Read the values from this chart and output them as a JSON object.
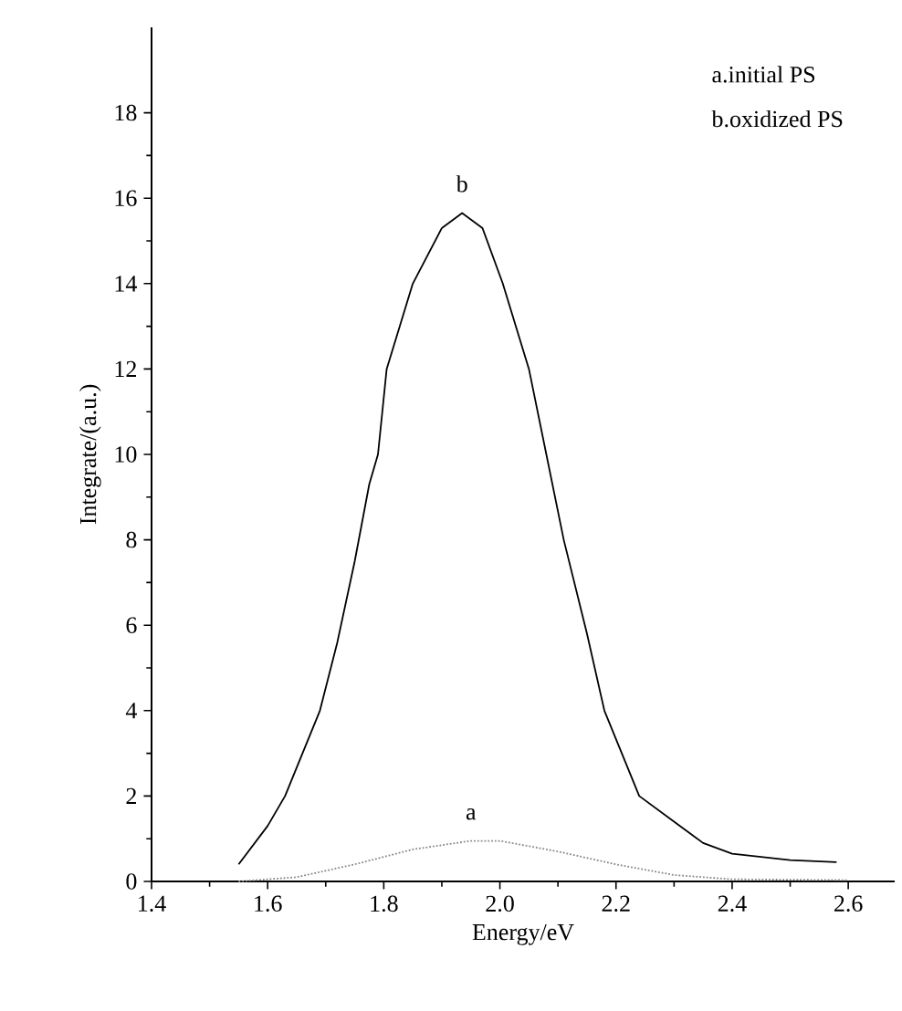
{
  "chart_data": {
    "type": "line",
    "xlabel": "Energy/eV",
    "ylabel": "Integrate/(a.u.)",
    "xlim": [
      1.4,
      2.68
    ],
    "ylim": [
      0,
      20
    ],
    "xticks": [
      {
        "value": 1.4,
        "label": "1.4"
      },
      {
        "value": 1.6,
        "label": "1.6"
      },
      {
        "value": 1.8,
        "label": "1.8"
      },
      {
        "value": 2.0,
        "label": "2.0"
      },
      {
        "value": 2.2,
        "label": "2.2"
      },
      {
        "value": 2.4,
        "label": "2.4"
      },
      {
        "value": 2.6,
        "label": "2.6"
      }
    ],
    "yticks": [
      0,
      2,
      4,
      6,
      8,
      10,
      12,
      14,
      16,
      18
    ],
    "grid": false,
    "marker": "none",
    "series": [
      {
        "color": "#888888",
        "line_style": "dotted",
        "x": [
          1.55,
          1.65,
          1.75,
          1.85,
          1.95,
          2.0,
          2.1,
          2.2,
          2.3,
          2.4,
          2.6
        ],
        "values": [
          0,
          0.1,
          0.4,
          0.75,
          0.95,
          0.95,
          0.7,
          0.4,
          0.15,
          0.05,
          0.03
        ]
      },
      {
        "color": "#000000",
        "line_style": "solid",
        "x": [
          1.55,
          1.6,
          1.63,
          1.66,
          1.69,
          1.72,
          1.75,
          1.775,
          1.79,
          1.805,
          1.85,
          1.9,
          1.935,
          1.97,
          2.005,
          2.05,
          2.08,
          2.11,
          2.15,
          2.18,
          2.24,
          2.3,
          2.35,
          2.4,
          2.5,
          2.58
        ],
        "values": [
          0.4,
          1.3,
          2.0,
          3.0,
          4.0,
          5.6,
          7.5,
          9.3,
          10.0,
          12.0,
          14.0,
          15.3,
          15.65,
          15.3,
          14.0,
          12.0,
          10.0,
          8.0,
          5.8,
          4.0,
          2.0,
          1.4,
          0.9,
          0.65,
          0.5,
          0.45
        ]
      }
    ],
    "annotations": [
      "a.initial PS",
      "b.oxidized PS",
      {
        "text": "a",
        "x": 1.95,
        "y": 0.95
      },
      {
        "text": "b",
        "x": 1.935,
        "y": 15.65
      }
    ]
  }
}
